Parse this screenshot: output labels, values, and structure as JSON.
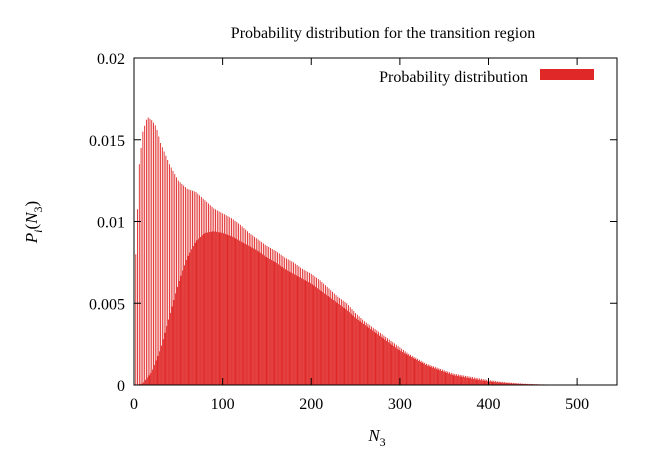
{
  "chart_data": {
    "type": "bar",
    "title": "Probability distribution for the transition region",
    "xlabel": "N3",
    "ylabel": "Pi(N3)",
    "xlim": [
      0,
      545
    ],
    "ylim": [
      0,
      0.02
    ],
    "x_ticks": [
      "0",
      "100",
      "200",
      "300",
      "400",
      "500"
    ],
    "y_ticks": [
      "0",
      "0.005",
      "0.01",
      "0.015",
      "0.02"
    ],
    "grid": false,
    "legend_position": "top-right",
    "bar_color": "#e02828",
    "series": [
      {
        "name": "Probability distribution",
        "upper_envelope": {
          "x": [
            2,
            6,
            10,
            15,
            20,
            25,
            30,
            40,
            50,
            60,
            70,
            80,
            90,
            100,
            110,
            120,
            130,
            140,
            150,
            160,
            170,
            180,
            190,
            200,
            210,
            220,
            230,
            240,
            250,
            260,
            270,
            280,
            290,
            300,
            310,
            320,
            330,
            340,
            350,
            360,
            370,
            380,
            390,
            400,
            410,
            420,
            430,
            440,
            450,
            460,
            470,
            480,
            490,
            500,
            510,
            520,
            530
          ],
          "y": [
            0.008,
            0.0135,
            0.0155,
            0.0164,
            0.0162,
            0.0158,
            0.0148,
            0.0135,
            0.0125,
            0.012,
            0.0118,
            0.0113,
            0.0108,
            0.0105,
            0.0102,
            0.0098,
            0.0093,
            0.0089,
            0.0085,
            0.0082,
            0.0078,
            0.0075,
            0.0071,
            0.0068,
            0.0064,
            0.0059,
            0.0054,
            0.005,
            0.0044,
            0.0039,
            0.0035,
            0.0031,
            0.0027,
            0.0023,
            0.0019,
            0.0016,
            0.0013,
            0.0011,
            0.0009,
            0.0007,
            0.0006,
            0.0005,
            0.0004,
            0.0003,
            0.00022,
            0.00016,
            0.00012,
            8e-05,
            6e-05,
            4e-05,
            3e-05,
            2e-05,
            1e-05,
            1e-05,
            5e-06,
            3e-06,
            0.0
          ]
        },
        "lower_envelope": {
          "x": [
            2,
            10,
            20,
            30,
            40,
            50,
            60,
            70,
            80,
            90,
            100,
            110,
            120,
            130,
            140,
            150,
            160,
            170,
            180,
            190,
            200,
            210,
            220,
            230,
            240,
            250,
            260,
            270,
            280,
            290,
            300,
            310,
            320,
            330,
            340,
            350,
            360,
            370,
            380,
            390,
            400,
            410,
            420,
            430,
            440,
            450,
            460,
            470,
            480,
            490,
            500,
            510,
            520,
            530
          ],
          "y": [
            0.0,
            0.0001,
            0.0008,
            0.0022,
            0.0042,
            0.0062,
            0.0078,
            0.0088,
            0.0093,
            0.0094,
            0.0093,
            0.0091,
            0.0088,
            0.0085,
            0.0082,
            0.0078,
            0.0075,
            0.0071,
            0.0068,
            0.0065,
            0.0062,
            0.0058,
            0.0054,
            0.005,
            0.0046,
            0.0041,
            0.0037,
            0.0033,
            0.0029,
            0.0025,
            0.0021,
            0.0018,
            0.0015,
            0.0012,
            0.001,
            0.0008,
            0.0006,
            0.0005,
            0.0004,
            0.0003,
            0.00022,
            0.00016,
            0.00012,
            8e-05,
            6e-05,
            4e-05,
            3e-05,
            2e-05,
            1e-05,
            1e-05,
            5e-06,
            3e-06,
            2e-06,
            0.0
          ]
        }
      }
    ]
  }
}
